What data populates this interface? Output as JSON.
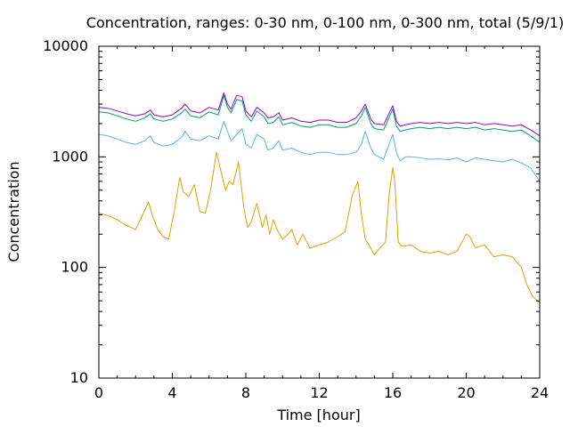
{
  "chart_data": {
    "type": "line",
    "title": "Concentration, ranges: 0-30 nm, 0-100 nm, 0-300 nm, total (5/9/1)",
    "xlabel": "Time [hour]",
    "ylabel": "Concentration",
    "xlim": [
      0,
      24
    ],
    "ylim": [
      10,
      10000
    ],
    "y_scale": "log",
    "x_ticks": [
      "0",
      "4",
      "8",
      "12",
      "16",
      "20",
      "24"
    ],
    "x_tick_values": [
      0,
      4,
      8,
      12,
      16,
      20,
      24
    ],
    "y_ticks": [
      "10",
      "100",
      "1000",
      "10000"
    ],
    "y_tick_values": [
      10,
      100,
      1000,
      10000
    ],
    "grid": false,
    "legend": "none",
    "series": [
      {
        "color": "#e69f00",
        "x": [
          0,
          0.5,
          1,
          1.5,
          2,
          2.3,
          2.7,
          2.9,
          3.2,
          3.5,
          3.8,
          4.1,
          4.4,
          4.6,
          4.9,
          5.2,
          5.5,
          5.8,
          6.1,
          6.4,
          6.7,
          6.9,
          7.1,
          7.3,
          7.6,
          7.9,
          8.1,
          8.3,
          8.6,
          8.9,
          9.1,
          9.3,
          9.5,
          9.7,
          10,
          10.3,
          10.5,
          10.8,
          11.1,
          11.5,
          12,
          12.5,
          13,
          13.4,
          13.8,
          14.1,
          14.3,
          14.5,
          14.7,
          15,
          15.3,
          15.6,
          15.8,
          16,
          16.1,
          16.3,
          16.5,
          17,
          17.5,
          18,
          18.5,
          19,
          19.5,
          20,
          20.2,
          20.5,
          21,
          21.5,
          22,
          22.5,
          23,
          23.3,
          23.6,
          24
        ],
        "values": [
          310,
          295,
          270,
          240,
          220,
          280,
          390,
          300,
          220,
          190,
          180,
          320,
          650,
          480,
          440,
          560,
          320,
          310,
          520,
          1100,
          680,
          500,
          600,
          560,
          900,
          340,
          230,
          260,
          380,
          230,
          300,
          200,
          270,
          220,
          180,
          200,
          220,
          160,
          200,
          150,
          160,
          170,
          190,
          210,
          450,
          600,
          300,
          180,
          160,
          130,
          150,
          170,
          450,
          800,
          620,
          170,
          155,
          160,
          140,
          135,
          140,
          130,
          140,
          200,
          190,
          150,
          160,
          125,
          130,
          125,
          100,
          70,
          55,
          48
        ]
      },
      {
        "color": "#56b4e9",
        "x": [
          0,
          0.5,
          1,
          1.5,
          2,
          2.5,
          2.8,
          3,
          3.5,
          4,
          4.5,
          4.7,
          5,
          5.5,
          6,
          6.5,
          6.8,
          7,
          7.2,
          7.5,
          7.8,
          8,
          8.3,
          8.6,
          9,
          9.2,
          9.5,
          9.8,
          10,
          10.5,
          11,
          11.5,
          12,
          12.5,
          13,
          13.5,
          14,
          14.3,
          14.5,
          14.8,
          15,
          15.5,
          16,
          16.2,
          16.4,
          16.7,
          17,
          17.5,
          18,
          18.5,
          19,
          19.5,
          20,
          20.5,
          21,
          21.5,
          22,
          22.5,
          23,
          23.5,
          24
        ],
        "values": [
          1600,
          1550,
          1450,
          1350,
          1300,
          1400,
          1550,
          1350,
          1250,
          1300,
          1500,
          1700,
          1450,
          1400,
          1550,
          1450,
          2100,
          1700,
          1400,
          1600,
          1800,
          1300,
          1200,
          1600,
          1450,
          1150,
          1200,
          1400,
          1150,
          1200,
          1100,
          1050,
          1100,
          1100,
          1050,
          1050,
          1100,
          1300,
          1700,
          1200,
          1050,
          950,
          1600,
          1100,
          920,
          1000,
          1000,
          980,
          950,
          960,
          940,
          980,
          900,
          980,
          950,
          920,
          900,
          950,
          880,
          800,
          600
        ]
      },
      {
        "color": "#009e73",
        "x": [
          0,
          0.5,
          1,
          1.5,
          2,
          2.5,
          2.8,
          3,
          3.5,
          4,
          4.5,
          4.7,
          5,
          5.5,
          6,
          6.5,
          6.8,
          7,
          7.2,
          7.5,
          7.8,
          8,
          8.3,
          8.6,
          9,
          9.2,
          9.5,
          9.8,
          10,
          10.5,
          11,
          11.5,
          12,
          12.5,
          13,
          13.5,
          14,
          14.3,
          14.5,
          14.8,
          15,
          15.5,
          16,
          16.2,
          16.4,
          16.7,
          17,
          17.5,
          18,
          18.5,
          19,
          19.5,
          20,
          20.5,
          21,
          21.5,
          22,
          22.5,
          23,
          23.5,
          24
        ],
        "values": [
          2550,
          2500,
          2350,
          2200,
          2100,
          2250,
          2450,
          2200,
          2100,
          2200,
          2500,
          2700,
          2350,
          2250,
          2550,
          2400,
          3600,
          2800,
          2500,
          3300,
          3200,
          2400,
          2100,
          2600,
          2300,
          2000,
          2050,
          2300,
          1950,
          2050,
          1900,
          1850,
          1950,
          1950,
          1850,
          1850,
          2000,
          2350,
          2800,
          2000,
          1800,
          1750,
          2700,
          1900,
          1700,
          1750,
          1800,
          1850,
          1800,
          1850,
          1800,
          1850,
          1800,
          1850,
          1750,
          1800,
          1750,
          1700,
          1750,
          1550,
          1350
        ]
      },
      {
        "color": "#9400d3",
        "x": [
          0,
          0.5,
          1,
          1.5,
          2,
          2.5,
          2.8,
          3,
          3.5,
          4,
          4.5,
          4.7,
          5,
          5.5,
          6,
          6.5,
          6.8,
          7,
          7.2,
          7.5,
          7.8,
          8,
          8.3,
          8.6,
          9,
          9.2,
          9.5,
          9.8,
          10,
          10.5,
          11,
          11.5,
          12,
          12.5,
          13,
          13.5,
          14,
          14.3,
          14.5,
          14.8,
          15,
          15.5,
          16,
          16.2,
          16.4,
          16.7,
          17,
          17.5,
          18,
          18.5,
          19,
          19.5,
          20,
          20.5,
          21,
          21.5,
          22,
          22.5,
          23,
          23.5,
          24
        ],
        "values": [
          2800,
          2750,
          2600,
          2450,
          2350,
          2450,
          2650,
          2400,
          2300,
          2400,
          2750,
          3000,
          2600,
          2500,
          2800,
          2650,
          3800,
          3000,
          2700,
          3600,
          3500,
          2600,
          2300,
          2800,
          2500,
          2250,
          2300,
          2500,
          2150,
          2250,
          2100,
          2050,
          2150,
          2150,
          2050,
          2050,
          2250,
          2600,
          3000,
          2200,
          2000,
          1950,
          2900,
          2100,
          1900,
          1950,
          2000,
          2050,
          2000,
          2050,
          2000,
          2050,
          2000,
          2050,
          1950,
          2000,
          1950,
          1900,
          1950,
          1750,
          1550
        ]
      }
    ]
  }
}
